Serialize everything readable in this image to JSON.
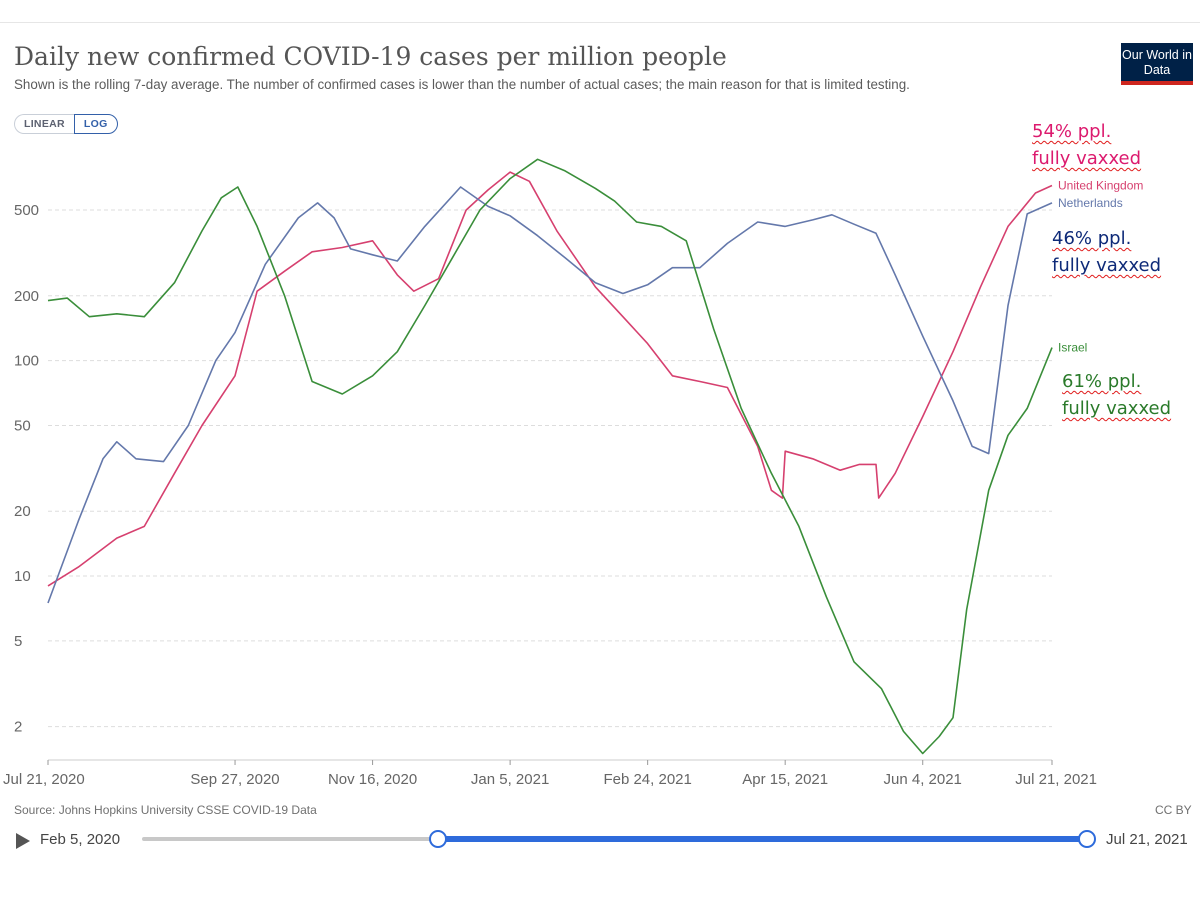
{
  "header": {
    "title": "Daily new confirmed COVID-19 cases per million people",
    "subtitle": "Shown is the rolling 7-day average. The number of confirmed cases is lower than the number of actual cases; the main reason for that is limited testing.",
    "logo": "Our World in Data"
  },
  "scale_toggle": {
    "linear": "LINEAR",
    "log": "LOG",
    "selected": "LOG"
  },
  "footer": {
    "source": "Source: Johns Hopkins University CSSE COVID-19 Data",
    "license": "CC BY"
  },
  "timeline": {
    "start": "Feb 5, 2020",
    "end": "Jul 21, 2021",
    "range_start": "Jul 21, 2020",
    "range_end": "Jul 21, 2021"
  },
  "annotations": {
    "uk": {
      "line1": "54% ppl.",
      "line2": "fully vaxxed",
      "color": "#dc1a6e"
    },
    "nl": {
      "line1": "46% ppl.",
      "line2": "fully vaxxed",
      "color": "#0e2a78"
    },
    "il": {
      "line1": "61% ppl.",
      "line2": "fully vaxxed",
      "color": "#2a7a2a"
    }
  },
  "chart_data": {
    "type": "line",
    "yscale": "log",
    "ylim": [
      1.4,
      950
    ],
    "grid": true,
    "yticks": [
      2,
      5,
      10,
      20,
      50,
      100,
      200,
      500
    ],
    "xticks": [
      "Jul 21, 2020",
      "Sep 27, 2020",
      "Nov 16, 2020",
      "Jan 5, 2021",
      "Feb 24, 2021",
      "Apr 15, 2021",
      "Jun 4, 2021",
      "Jul 21, 2021"
    ],
    "xrange": [
      "2020-07-21",
      "2021-07-21"
    ],
    "series": [
      {
        "name": "United Kingdom",
        "color": "#d6406f",
        "points": [
          [
            "2020-07-21",
            9
          ],
          [
            "2020-08-01",
            11
          ],
          [
            "2020-08-15",
            15
          ],
          [
            "2020-08-25",
            17
          ],
          [
            "2020-09-05",
            30
          ],
          [
            "2020-09-15",
            50
          ],
          [
            "2020-09-27",
            85
          ],
          [
            "2020-10-05",
            210
          ],
          [
            "2020-10-15",
            260
          ],
          [
            "2020-10-25",
            320
          ],
          [
            "2020-11-05",
            335
          ],
          [
            "2020-11-16",
            360
          ],
          [
            "2020-11-25",
            250
          ],
          [
            "2020-12-01",
            210
          ],
          [
            "2020-12-10",
            240
          ],
          [
            "2020-12-20",
            500
          ],
          [
            "2020-12-28",
            620
          ],
          [
            "2021-01-05",
            750
          ],
          [
            "2021-01-12",
            680
          ],
          [
            "2021-01-22",
            400
          ],
          [
            "2021-02-05",
            220
          ],
          [
            "2021-02-15",
            160
          ],
          [
            "2021-02-24",
            120
          ],
          [
            "2021-03-05",
            85
          ],
          [
            "2021-03-15",
            80
          ],
          [
            "2021-03-25",
            75
          ],
          [
            "2021-04-05",
            40
          ],
          [
            "2021-04-10",
            25
          ],
          [
            "2021-04-14",
            23
          ],
          [
            "2021-04-15",
            38
          ],
          [
            "2021-04-25",
            35
          ],
          [
            "2021-05-05",
            31
          ],
          [
            "2021-05-12",
            33
          ],
          [
            "2021-05-18",
            33
          ],
          [
            "2021-05-19",
            23
          ],
          [
            "2021-05-25",
            30
          ],
          [
            "2021-06-04",
            55
          ],
          [
            "2021-06-15",
            110
          ],
          [
            "2021-06-25",
            220
          ],
          [
            "2021-07-05",
            420
          ],
          [
            "2021-07-15",
            600
          ],
          [
            "2021-07-21",
            650
          ]
        ]
      },
      {
        "name": "Netherlands",
        "color": "#6478ab",
        "points": [
          [
            "2020-07-21",
            7.5
          ],
          [
            "2020-08-01",
            18
          ],
          [
            "2020-08-10",
            35
          ],
          [
            "2020-08-15",
            42
          ],
          [
            "2020-08-22",
            35
          ],
          [
            "2020-09-01",
            34
          ],
          [
            "2020-09-10",
            50
          ],
          [
            "2020-09-20",
            100
          ],
          [
            "2020-09-27",
            135
          ],
          [
            "2020-10-08",
            280
          ],
          [
            "2020-10-20",
            460
          ],
          [
            "2020-10-27",
            540
          ],
          [
            "2020-11-02",
            460
          ],
          [
            "2020-11-08",
            330
          ],
          [
            "2020-11-16",
            310
          ],
          [
            "2020-11-25",
            290
          ],
          [
            "2020-12-05",
            420
          ],
          [
            "2020-12-18",
            640
          ],
          [
            "2020-12-28",
            520
          ],
          [
            "2021-01-05",
            470
          ],
          [
            "2021-01-15",
            380
          ],
          [
            "2021-01-25",
            300
          ],
          [
            "2021-02-05",
            230
          ],
          [
            "2021-02-15",
            205
          ],
          [
            "2021-02-24",
            225
          ],
          [
            "2021-03-05",
            270
          ],
          [
            "2021-03-15",
            270
          ],
          [
            "2021-03-25",
            350
          ],
          [
            "2021-04-05",
            440
          ],
          [
            "2021-04-15",
            420
          ],
          [
            "2021-04-25",
            450
          ],
          [
            "2021-05-02",
            475
          ],
          [
            "2021-05-10",
            430
          ],
          [
            "2021-05-18",
            390
          ],
          [
            "2021-05-25",
            250
          ],
          [
            "2021-06-04",
            130
          ],
          [
            "2021-06-15",
            65
          ],
          [
            "2021-06-22",
            40
          ],
          [
            "2021-06-28",
            37
          ],
          [
            "2021-07-05",
            180
          ],
          [
            "2021-07-12",
            480
          ],
          [
            "2021-07-21",
            540
          ]
        ]
      },
      {
        "name": "Israel",
        "color": "#3a8e3a",
        "points": [
          [
            "2020-07-21",
            190
          ],
          [
            "2020-07-28",
            195
          ],
          [
            "2020-08-05",
            160
          ],
          [
            "2020-08-15",
            165
          ],
          [
            "2020-08-25",
            160
          ],
          [
            "2020-09-05",
            230
          ],
          [
            "2020-09-15",
            400
          ],
          [
            "2020-09-22",
            570
          ],
          [
            "2020-09-28",
            640
          ],
          [
            "2020-10-05",
            420
          ],
          [
            "2020-10-15",
            200
          ],
          [
            "2020-10-25",
            80
          ],
          [
            "2020-11-05",
            70
          ],
          [
            "2020-11-16",
            85
          ],
          [
            "2020-11-25",
            110
          ],
          [
            "2020-12-05",
            180
          ],
          [
            "2020-12-15",
            300
          ],
          [
            "2020-12-25",
            500
          ],
          [
            "2021-01-05",
            700
          ],
          [
            "2021-01-15",
            860
          ],
          [
            "2021-01-25",
            760
          ],
          [
            "2021-02-05",
            630
          ],
          [
            "2021-02-12",
            550
          ],
          [
            "2021-02-20",
            440
          ],
          [
            "2021-03-01",
            420
          ],
          [
            "2021-03-10",
            360
          ],
          [
            "2021-03-20",
            140
          ],
          [
            "2021-03-30",
            60
          ],
          [
            "2021-04-10",
            30
          ],
          [
            "2021-04-20",
            17
          ],
          [
            "2021-04-30",
            8
          ],
          [
            "2021-05-10",
            4
          ],
          [
            "2021-05-20",
            3
          ],
          [
            "2021-05-28",
            1.9
          ],
          [
            "2021-06-04",
            1.5
          ],
          [
            "2021-06-10",
            1.8
          ],
          [
            "2021-06-15",
            2.2
          ],
          [
            "2021-06-20",
            7
          ],
          [
            "2021-06-28",
            25
          ],
          [
            "2021-07-05",
            45
          ],
          [
            "2021-07-12",
            60
          ],
          [
            "2021-07-21",
            115
          ]
        ]
      }
    ]
  }
}
